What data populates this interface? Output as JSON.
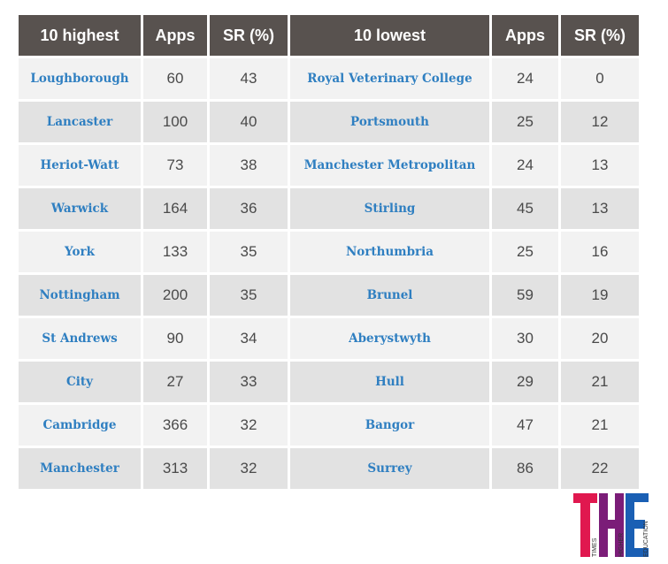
{
  "headers": {
    "highest": "10 highest",
    "apps_left": "Apps",
    "sr_left": "SR (%)",
    "lowest": "10 lowest",
    "apps_right": "Apps",
    "sr_right": "SR (%)"
  },
  "rows": [
    {
      "high_name": "Loughborough",
      "high_apps": "60",
      "high_sr": "43",
      "low_name": "Royal Veterinary College",
      "low_apps": "24",
      "low_sr": "0"
    },
    {
      "high_name": "Lancaster",
      "high_apps": "100",
      "high_sr": "40",
      "low_name": "Portsmouth",
      "low_apps": "25",
      "low_sr": "12"
    },
    {
      "high_name": "Heriot-Watt",
      "high_apps": "73",
      "high_sr": "38",
      "low_name": "Manchester Metropolitan",
      "low_apps": "24",
      "low_sr": "13"
    },
    {
      "high_name": "Warwick",
      "high_apps": "164",
      "high_sr": "36",
      "low_name": "Stirling",
      "low_apps": "45",
      "low_sr": "13"
    },
    {
      "high_name": "York",
      "high_apps": "133",
      "high_sr": "35",
      "low_name": "Northumbria",
      "low_apps": "25",
      "low_sr": "16"
    },
    {
      "high_name": "Nottingham",
      "high_apps": "200",
      "high_sr": "35",
      "low_name": "Brunel",
      "low_apps": "59",
      "low_sr": "19"
    },
    {
      "high_name": "St Andrews",
      "high_apps": "90",
      "high_sr": "34",
      "low_name": "Aberystwyth",
      "low_apps": "30",
      "low_sr": "20"
    },
    {
      "high_name": "City",
      "high_apps": "27",
      "high_sr": "33",
      "low_name": "Hull",
      "low_apps": "29",
      "low_sr": "21"
    },
    {
      "high_name": "Cambridge",
      "high_apps": "366",
      "high_sr": "32",
      "low_name": "Bangor",
      "low_apps": "47",
      "low_sr": "21"
    },
    {
      "high_name": "Manchester",
      "high_apps": "313",
      "high_sr": "32",
      "low_name": "Surrey",
      "low_apps": "86",
      "low_sr": "22"
    }
  ],
  "logo": {
    "letters": "THE",
    "lines": [
      "TIMES",
      "HIGHER",
      "EDUCATION"
    ],
    "colors": {
      "t": "#e0184f",
      "h": "#7b1d78",
      "e": "#1a5fb4"
    }
  },
  "colors": {
    "header_bg": "#58524f",
    "name_text": "#2f7fc1",
    "row_light": "#f2f2f2",
    "row_dark": "#e2e2e2"
  }
}
